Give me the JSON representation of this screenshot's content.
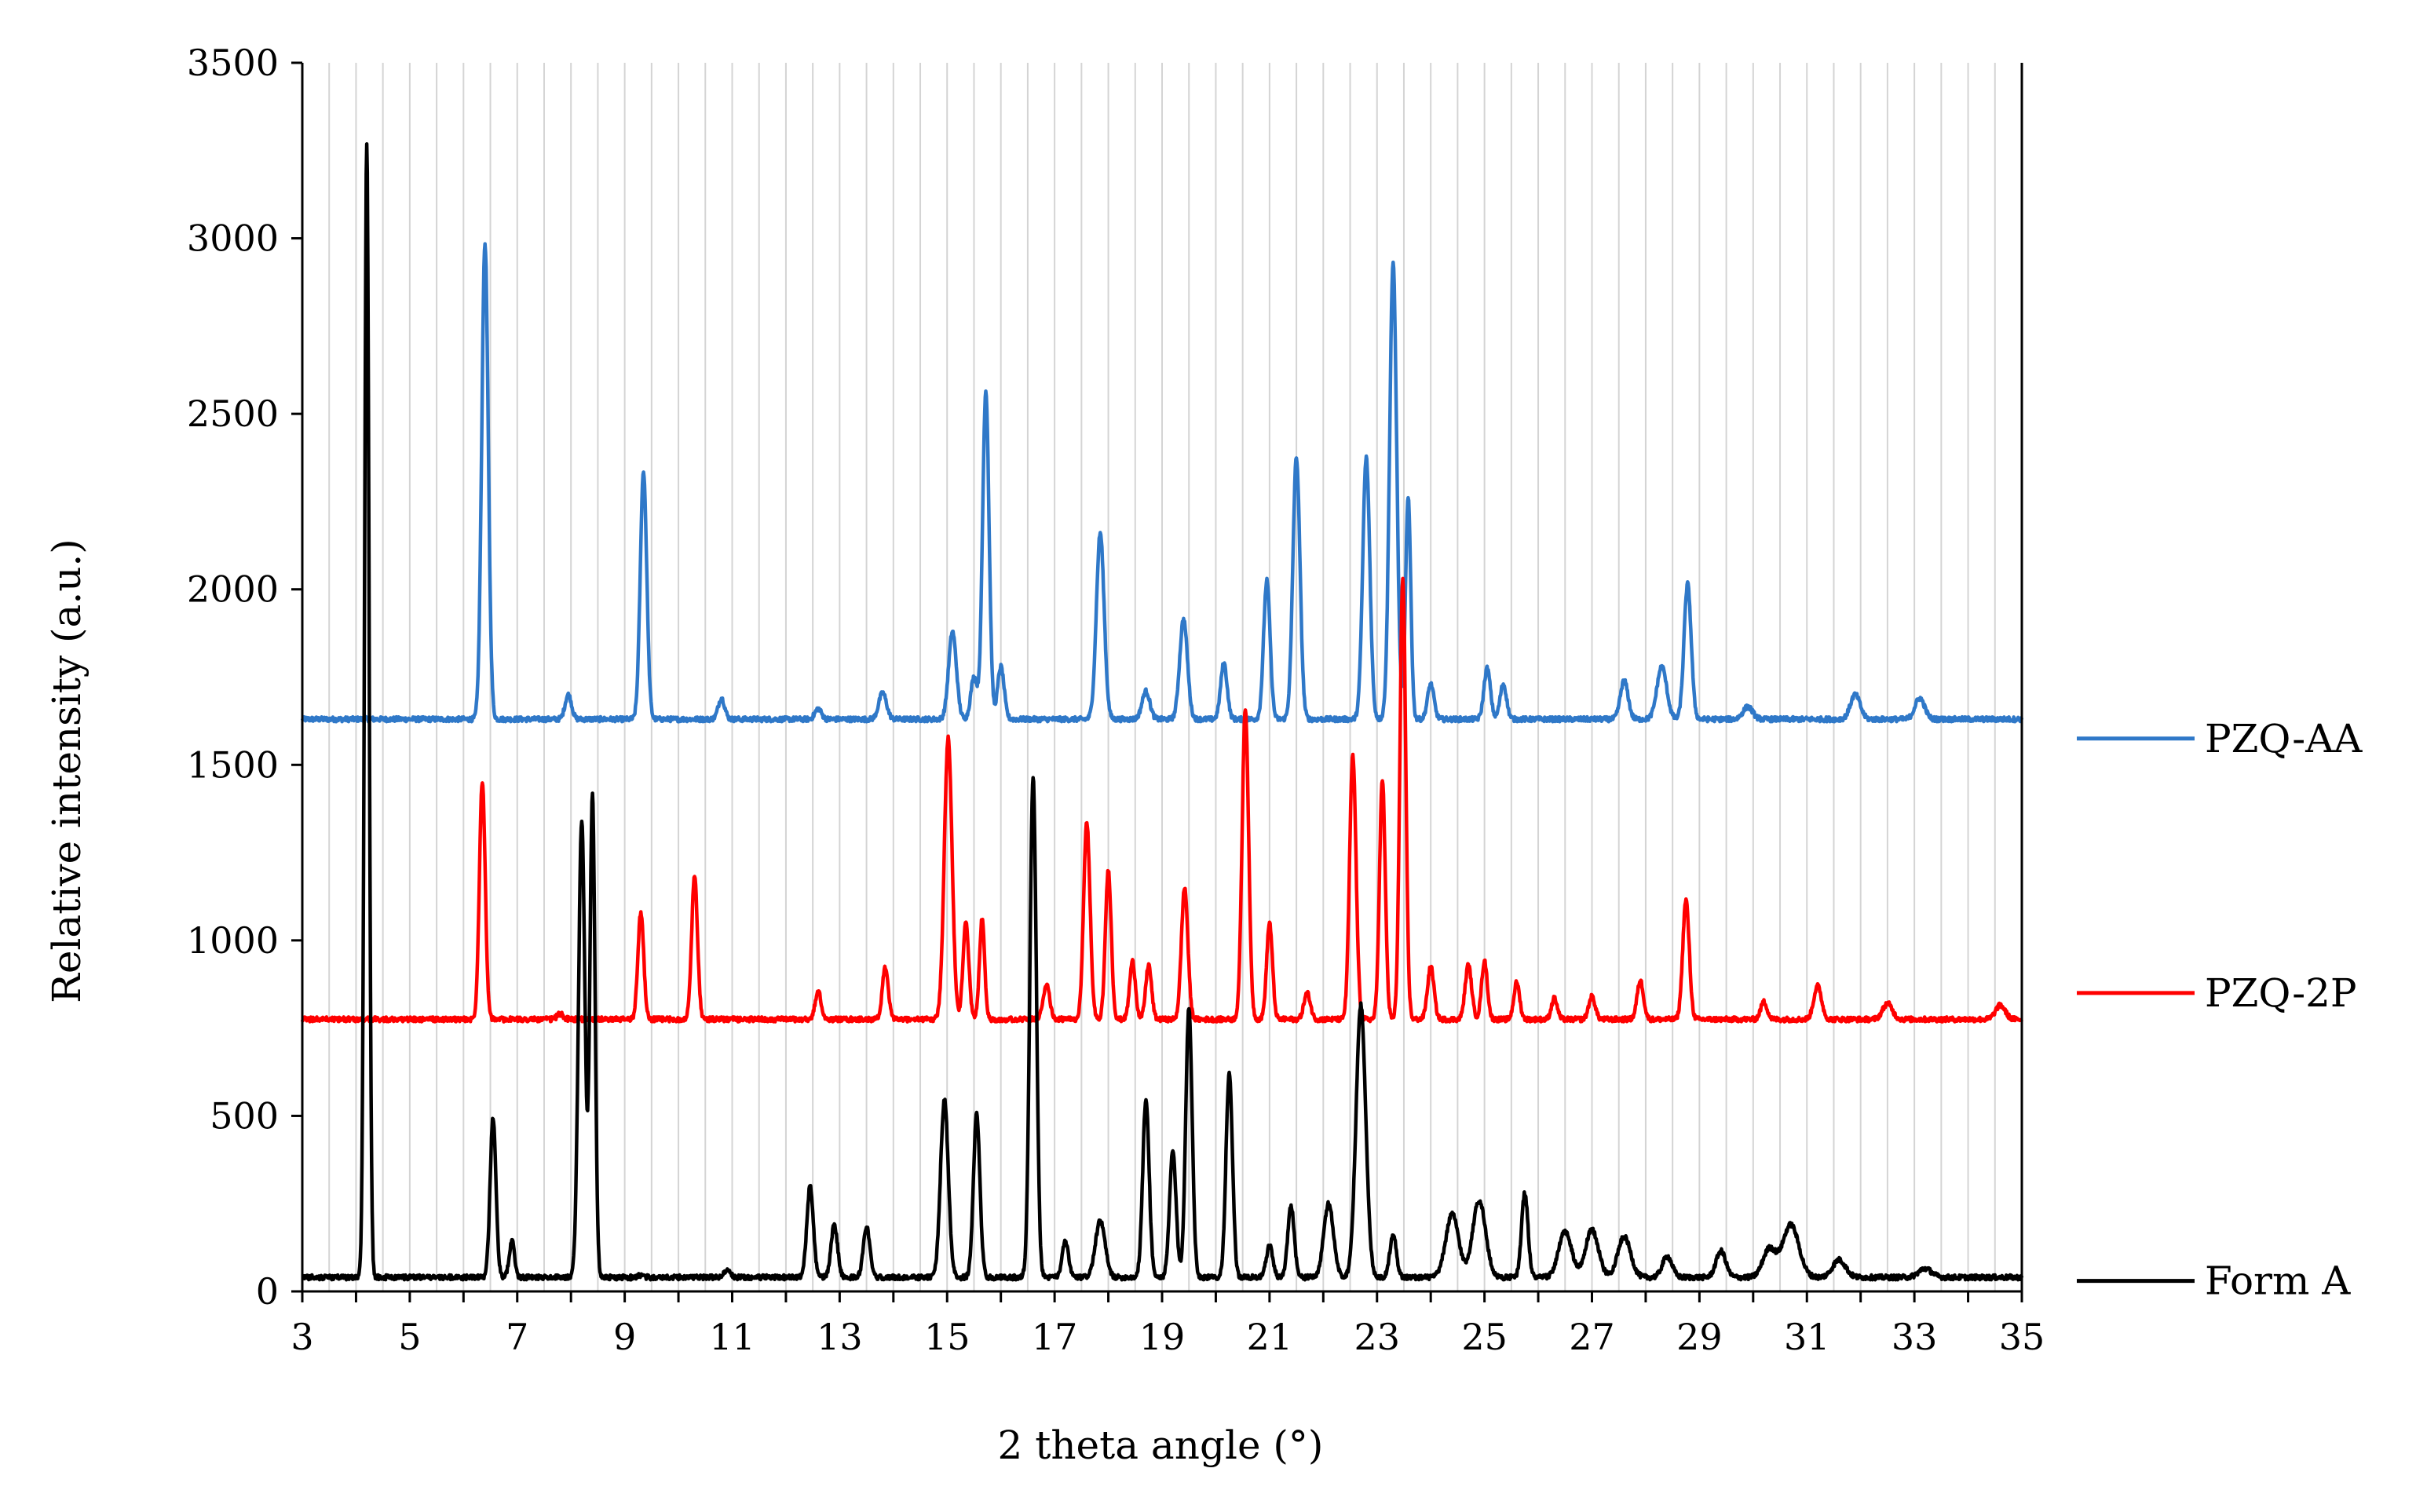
{
  "chart_data": {
    "type": "line",
    "title": "",
    "xlabel": "2 theta angle (°)",
    "ylabel": "Relative intensity (a.u.)",
    "xlim": [
      3,
      35
    ],
    "ylim": [
      0,
      3500
    ],
    "x_ticks": [
      "3",
      "5",
      "7",
      "9",
      "11",
      "13",
      "15",
      "17",
      "19",
      "21",
      "23",
      "25",
      "27",
      "29",
      "31",
      "33",
      "35"
    ],
    "y_ticks": [
      "0",
      "500",
      "1000",
      "1500",
      "2000",
      "2500",
      "3000",
      "3500"
    ],
    "grid": "vertical minor lines",
    "legend_position": "right",
    "series": [
      {
        "name": "PZQ-AA",
        "color": "#2f78c8",
        "baseline": 1630,
        "peaks": [
          [
            6.4,
            2985,
            0.1
          ],
          [
            7.95,
            1700,
            0.1
          ],
          [
            9.35,
            2335,
            0.1
          ],
          [
            10.8,
            1690,
            0.1
          ],
          [
            12.6,
            1660,
            0.1
          ],
          [
            13.8,
            1705,
            0.12
          ],
          [
            15.1,
            1880,
            0.12
          ],
          [
            15.5,
            1750,
            0.1
          ],
          [
            15.72,
            2565,
            0.1
          ],
          [
            16.0,
            1780,
            0.1
          ],
          [
            17.85,
            2160,
            0.12
          ],
          [
            18.7,
            1710,
            0.12
          ],
          [
            19.4,
            1915,
            0.12
          ],
          [
            20.15,
            1790,
            0.1
          ],
          [
            20.95,
            2025,
            0.1
          ],
          [
            21.5,
            2375,
            0.11
          ],
          [
            22.8,
            2375,
            0.11
          ],
          [
            23.3,
            2925,
            0.11
          ],
          [
            23.58,
            2260,
            0.08
          ],
          [
            24.0,
            1730,
            0.1
          ],
          [
            25.05,
            1775,
            0.1
          ],
          [
            25.35,
            1730,
            0.1
          ],
          [
            27.6,
            1740,
            0.12
          ],
          [
            28.3,
            1780,
            0.15
          ],
          [
            28.78,
            2015,
            0.11
          ],
          [
            29.9,
            1665,
            0.15
          ],
          [
            31.9,
            1700,
            0.15
          ],
          [
            33.1,
            1690,
            0.15
          ]
        ]
      },
      {
        "name": "PZQ-2P",
        "color": "#ff0000",
        "baseline": 775,
        "peaks": [
          [
            6.35,
            1455,
            0.09
          ],
          [
            7.8,
            790,
            0.1
          ],
          [
            9.3,
            1080,
            0.09
          ],
          [
            10.3,
            1185,
            0.09
          ],
          [
            12.6,
            855,
            0.09
          ],
          [
            13.85,
            925,
            0.09
          ],
          [
            15.02,
            1575,
            0.12
          ],
          [
            15.35,
            1050,
            0.09
          ],
          [
            15.65,
            1060,
            0.08
          ],
          [
            16.85,
            875,
            0.1
          ],
          [
            17.6,
            1335,
            0.1
          ],
          [
            18.0,
            1200,
            0.09
          ],
          [
            18.45,
            940,
            0.09
          ],
          [
            18.75,
            930,
            0.09
          ],
          [
            19.42,
            1150,
            0.1
          ],
          [
            20.55,
            1660,
            0.1
          ],
          [
            21.0,
            1050,
            0.09
          ],
          [
            21.7,
            850,
            0.1
          ],
          [
            22.55,
            1525,
            0.1
          ],
          [
            23.1,
            1455,
            0.09
          ],
          [
            23.48,
            2030,
            0.09
          ],
          [
            24.0,
            925,
            0.1
          ],
          [
            24.7,
            930,
            0.1
          ],
          [
            25.0,
            940,
            0.09
          ],
          [
            25.6,
            880,
            0.09
          ],
          [
            26.3,
            835,
            0.09
          ],
          [
            27.0,
            840,
            0.1
          ],
          [
            27.9,
            885,
            0.1
          ],
          [
            28.75,
            1115,
            0.1
          ],
          [
            30.2,
            825,
            0.1
          ],
          [
            31.2,
            870,
            0.12
          ],
          [
            32.5,
            820,
            0.15
          ],
          [
            34.6,
            815,
            0.15
          ]
        ]
      },
      {
        "name": "Form A",
        "color": "#000000",
        "baseline": 40,
        "peaks": [
          [
            4.2,
            3275,
            0.07
          ],
          [
            6.55,
            495,
            0.09
          ],
          [
            6.9,
            145,
            0.08
          ],
          [
            8.2,
            1345,
            0.1
          ],
          [
            8.4,
            1410,
            0.08
          ],
          [
            9.3,
            45,
            0.1
          ],
          [
            10.9,
            60,
            0.1
          ],
          [
            12.45,
            300,
            0.1
          ],
          [
            12.9,
            190,
            0.1
          ],
          [
            13.5,
            185,
            0.1
          ],
          [
            14.95,
            545,
            0.12
          ],
          [
            15.55,
            505,
            0.1
          ],
          [
            16.6,
            1470,
            0.1
          ],
          [
            17.2,
            140,
            0.1
          ],
          [
            17.85,
            200,
            0.15
          ],
          [
            18.7,
            545,
            0.1
          ],
          [
            19.2,
            400,
            0.1
          ],
          [
            19.5,
            805,
            0.1
          ],
          [
            20.25,
            620,
            0.1
          ],
          [
            21.0,
            130,
            0.1
          ],
          [
            21.4,
            245,
            0.1
          ],
          [
            22.1,
            250,
            0.15
          ],
          [
            22.7,
            815,
            0.15
          ],
          [
            23.3,
            165,
            0.1
          ],
          [
            24.4,
            220,
            0.2
          ],
          [
            24.9,
            260,
            0.2
          ],
          [
            25.75,
            280,
            0.1
          ],
          [
            26.5,
            170,
            0.2
          ],
          [
            27.0,
            175,
            0.2
          ],
          [
            27.6,
            155,
            0.2
          ],
          [
            28.4,
            100,
            0.15
          ],
          [
            29.4,
            115,
            0.15
          ],
          [
            30.3,
            120,
            0.2
          ],
          [
            30.7,
            190,
            0.25
          ],
          [
            31.6,
            90,
            0.2
          ],
          [
            33.2,
            65,
            0.2
          ]
        ]
      }
    ]
  }
}
